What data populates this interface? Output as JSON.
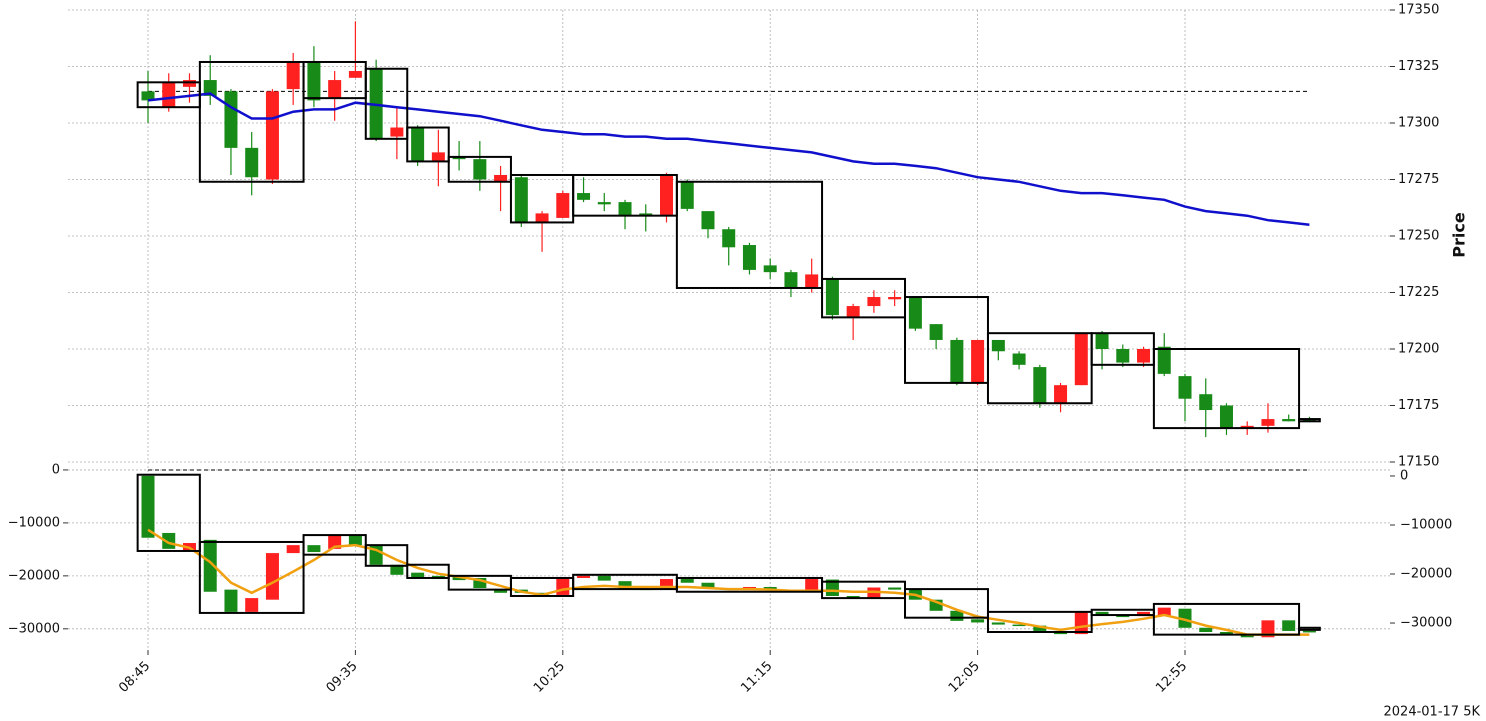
{
  "chart_data": [
    {
      "type": "candlestick",
      "y_label": "Price",
      "up_color": "#ff2020",
      "down_color": "#178a17",
      "grid": true,
      "ylim": [
        17150,
        17350
      ],
      "yticks": [
        17150,
        17175,
        17200,
        17225,
        17250,
        17275,
        17300,
        17325,
        17350
      ],
      "open": [
        17314,
        17307,
        17316,
        17319,
        17314,
        17289,
        17275,
        17315,
        17327,
        17311,
        17320,
        17324,
        17294,
        17298,
        17283,
        17285,
        17284,
        17274,
        17276,
        17256,
        17258,
        17269,
        17265,
        17265,
        17260,
        17259,
        17274,
        17261,
        17253,
        17246,
        17237,
        17234,
        17227,
        17231,
        17214,
        17219,
        17222,
        17223,
        17211,
        17204,
        17185,
        17204,
        17198,
        17192,
        17176,
        17184,
        17207,
        17200,
        17194,
        17201,
        17188,
        17180,
        17175,
        17165,
        17166,
        17169,
        17169
      ],
      "high": [
        17323,
        17322,
        17322,
        17330,
        17315,
        17296,
        17315,
        17331,
        17334,
        17323,
        17345,
        17328,
        17307,
        17299,
        17297,
        17292,
        17292,
        17281,
        17277,
        17261,
        17270,
        17276,
        17269,
        17266,
        17264,
        17278,
        17275,
        17261,
        17254,
        17247,
        17240,
        17235,
        17240,
        17232,
        17220,
        17226,
        17226,
        17223,
        17211,
        17205,
        17204,
        17204,
        17199,
        17193,
        17185,
        17207,
        17208,
        17202,
        17201,
        17207,
        17189,
        17187,
        17176,
        17168,
        17176,
        17171,
        17170
      ],
      "low": [
        17300,
        17305,
        17309,
        17308,
        17277,
        17268,
        17273,
        17308,
        17307,
        17301,
        17320,
        17292,
        17284,
        17281,
        17272,
        17279,
        17270,
        17261,
        17254,
        17243,
        17258,
        17265,
        17261,
        17253,
        17252,
        17256,
        17261,
        17249,
        17237,
        17233,
        17231,
        17223,
        17225,
        17213,
        17204,
        17216,
        17219,
        17208,
        17200,
        17184,
        17184,
        17195,
        17191,
        17174,
        17172,
        17184,
        17191,
        17192,
        17192,
        17188,
        17168,
        17161,
        17162,
        17162,
        17163,
        17168,
        17168
      ],
      "close": [
        17310,
        17318,
        17319,
        17312,
        17289,
        17276,
        17314,
        17327,
        17310,
        17319,
        17323,
        17293,
        17298,
        17283,
        17287,
        17284,
        17275,
        17277,
        17256,
        17260,
        17269,
        17266,
        17264,
        17259,
        17259,
        17277,
        17262,
        17253,
        17245,
        17235,
        17234,
        17227,
        17233,
        17215,
        17219,
        17223,
        17223,
        17209,
        17204,
        17185,
        17204,
        17199,
        17193,
        17176,
        17184,
        17207,
        17200,
        17194,
        17200,
        17189,
        17178,
        17173,
        17165,
        17166,
        17169,
        17168,
        17169
      ],
      "lines": [
        {
          "color": "#1010cc",
          "values": [
            17310,
            17311,
            17312,
            17313,
            17307,
            17302,
            17302,
            17305,
            17306,
            17306,
            17309,
            17308,
            17307,
            17306,
            17305,
            17304,
            17303,
            17301,
            17299,
            17297,
            17296,
            17295,
            17295,
            17294,
            17294,
            17293,
            17293,
            17292,
            17291,
            17290,
            17289,
            17288,
            17287,
            17285,
            17283,
            17282,
            17282,
            17281,
            17280,
            17278,
            17276,
            17275,
            17274,
            17272,
            17270,
            17269,
            17269,
            17268,
            17267,
            17266,
            17263,
            17261,
            17260,
            17259,
            17257,
            17256,
            17255
          ]
        }
      ],
      "hline": 17314,
      "boxes": [
        {
          "start": 0,
          "end": 2,
          "high": 17318,
          "low": 17307
        },
        {
          "start": 3,
          "end": 7,
          "high": 17327,
          "low": 17274
        },
        {
          "start": 8,
          "end": 10,
          "high": 17327,
          "low": 17311
        },
        {
          "start": 11,
          "end": 12,
          "high": 17324,
          "low": 17293
        },
        {
          "start": 13,
          "end": 14,
          "high": 17298,
          "low": 17283
        },
        {
          "start": 15,
          "end": 17,
          "high": 17285,
          "low": 17274
        },
        {
          "start": 18,
          "end": 20,
          "high": 17277,
          "low": 17256
        },
        {
          "start": 21,
          "end": 25,
          "high": 17277,
          "low": 17259
        },
        {
          "start": 26,
          "end": 32,
          "high": 17274,
          "low": 17227
        },
        {
          "start": 33,
          "end": 36,
          "high": 17231,
          "low": 17214
        },
        {
          "start": 37,
          "end": 40,
          "high": 17223,
          "low": 17185
        },
        {
          "start": 41,
          "end": 45,
          "high": 17207,
          "low": 17176
        },
        {
          "start": 46,
          "end": 48,
          "high": 17207,
          "low": 17193
        },
        {
          "start": 49,
          "end": 55,
          "high": 17200,
          "low": 17165
        },
        {
          "start": 56,
          "end": 56,
          "high": 17169,
          "low": 17168
        }
      ]
    },
    {
      "type": "candlestick",
      "up_color": "#ff2020",
      "down_color": "#178a17",
      "grid": true,
      "footnote": "2024-01-17 5K",
      "categories": [
        "08:45",
        null,
        null,
        null,
        null,
        null,
        null,
        null,
        null,
        null,
        "09:35",
        null,
        null,
        null,
        null,
        null,
        null,
        null,
        null,
        null,
        "10:25",
        null,
        null,
        null,
        null,
        null,
        null,
        null,
        null,
        null,
        "11:15",
        null,
        null,
        null,
        null,
        null,
        null,
        null,
        null,
        null,
        "12:05",
        null,
        null,
        null,
        null,
        null,
        null,
        null,
        null,
        null,
        "12:55",
        null,
        null,
        null,
        null,
        null,
        null
      ],
      "ylim": [
        -34000,
        1500
      ],
      "yticks": [
        {
          "value": -30000,
          "label": "−30000"
        },
        {
          "value": -20000,
          "label": "−20000"
        },
        {
          "value": -10000,
          "label": "−10000"
        },
        0
      ],
      "y2lim": [
        -35500,
        2850
      ],
      "y2ticks": [
        {
          "value": -30000,
          "label": "−30000"
        },
        {
          "value": -20000,
          "label": "−20000"
        },
        {
          "value": -10000,
          "label": "−10000"
        },
        0
      ],
      "open": [
        -1100,
        -11900,
        -15300,
        -13200,
        -22600,
        -26800,
        -24500,
        -15700,
        -14200,
        -14900,
        -12300,
        -14200,
        -17900,
        -19400,
        -20000,
        -20200,
        -20400,
        -22500,
        -22600,
        -23200,
        -23600,
        -20400,
        -20000,
        -21000,
        -22400,
        -22600,
        -20600,
        -21300,
        -22300,
        -22600,
        -22100,
        -22600,
        -23000,
        -20700,
        -23800,
        -24200,
        -22200,
        -22600,
        -24500,
        -26600,
        -28200,
        -28800,
        -29200,
        -29400,
        -30400,
        -31000,
        -26800,
        -27500,
        -27600,
        -27500,
        -26200,
        -29800,
        -30600,
        -31200,
        -31600,
        -28400,
        -30400
      ],
      "close": [
        -12800,
        -14900,
        -13800,
        -23000,
        -26800,
        -24200,
        -15700,
        -14200,
        -15500,
        -12300,
        -14200,
        -17900,
        -19800,
        -20400,
        -20600,
        -20800,
        -22300,
        -23200,
        -23200,
        -23600,
        -20400,
        -20000,
        -20900,
        -22400,
        -22600,
        -20600,
        -21300,
        -22300,
        -22600,
        -22100,
        -22600,
        -22900,
        -20600,
        -23800,
        -24200,
        -22200,
        -22600,
        -24500,
        -26600,
        -28500,
        -28800,
        -29200,
        -29400,
        -30400,
        -31000,
        -26800,
        -27500,
        -27600,
        -26800,
        -26000,
        -29800,
        -30600,
        -31200,
        -31600,
        -28400,
        -30400,
        -30600
      ],
      "lines": [
        {
          "color": "#f0a010",
          "values": [
            -11300,
            -13800,
            -14700,
            -17400,
            -21300,
            -23200,
            -21300,
            -19200,
            -17000,
            -14500,
            -14200,
            -15100,
            -17000,
            -18500,
            -19600,
            -20200,
            -20800,
            -21900,
            -23000,
            -23600,
            -22600,
            -22100,
            -21900,
            -22100,
            -22100,
            -22100,
            -22100,
            -22300,
            -22500,
            -22500,
            -22600,
            -22800,
            -22800,
            -22800,
            -23000,
            -23000,
            -23200,
            -23600,
            -24900,
            -26400,
            -27700,
            -28300,
            -28900,
            -29600,
            -30200,
            -29600,
            -29100,
            -28700,
            -28100,
            -27400,
            -28300,
            -29400,
            -30200,
            -31100,
            -31100,
            -31100,
            -31100
          ]
        }
      ],
      "hline": 0,
      "boxes": [
        {
          "start": 0,
          "end": 2,
          "high": -900,
          "low": -15300
        },
        {
          "start": 3,
          "end": 7,
          "high": -13600,
          "low": -27000
        },
        {
          "start": 8,
          "end": 10,
          "high": -12300,
          "low": -16000
        },
        {
          "start": 11,
          "end": 12,
          "high": -14200,
          "low": -18100
        },
        {
          "start": 13,
          "end": 14,
          "high": -17900,
          "low": -20400
        },
        {
          "start": 15,
          "end": 17,
          "high": -20000,
          "low": -22600
        },
        {
          "start": 18,
          "end": 20,
          "high": -20400,
          "low": -23800
        },
        {
          "start": 21,
          "end": 25,
          "high": -19800,
          "low": -22500
        },
        {
          "start": 26,
          "end": 32,
          "high": -20400,
          "low": -23000
        },
        {
          "start": 33,
          "end": 36,
          "high": -21100,
          "low": -24200
        },
        {
          "start": 37,
          "end": 40,
          "high": -22500,
          "low": -27900
        },
        {
          "start": 41,
          "end": 45,
          "high": -26800,
          "low": -30600
        },
        {
          "start": 46,
          "end": 48,
          "high": -26400,
          "low": -27400
        },
        {
          "start": 49,
          "end": 55,
          "high": -25300,
          "low": -31100
        },
        {
          "start": 56,
          "end": 56,
          "high": -29800,
          "low": -30200
        }
      ]
    }
  ]
}
